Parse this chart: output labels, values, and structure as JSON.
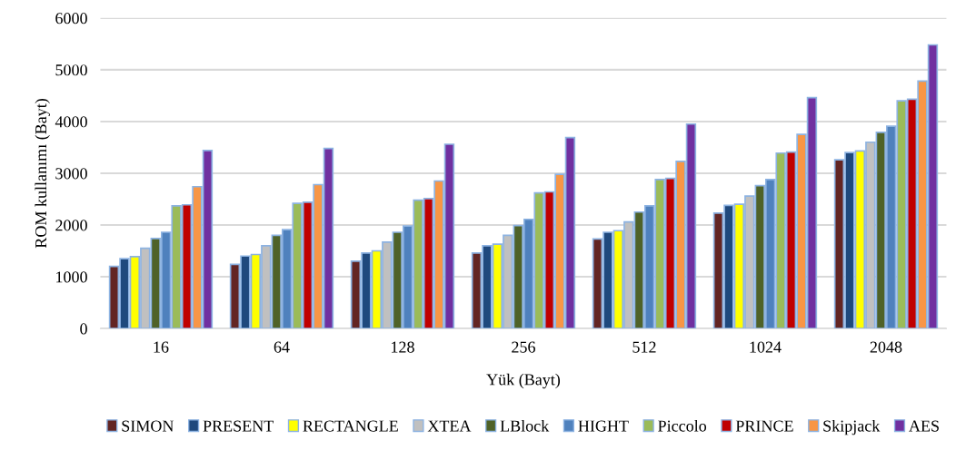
{
  "chart_data": {
    "type": "bar",
    "xlabel": "Yük (Bayt)",
    "ylabel": "ROM kullanımı (Bayt)",
    "categories": [
      "16",
      "64",
      "128",
      "256",
      "512",
      "1024",
      "2048"
    ],
    "ylim": [
      0,
      6000
    ],
    "yticks": [
      0,
      1000,
      2000,
      3000,
      4000,
      5000,
      6000
    ],
    "grid": "y",
    "legend": "bottom",
    "series": [
      {
        "name": "SIMON",
        "color": "#632523",
        "values": [
          1200,
          1240,
          1300,
          1460,
          1730,
          2230,
          3260
        ]
      },
      {
        "name": "PRESENT",
        "color": "#1f497d",
        "values": [
          1350,
          1400,
          1460,
          1600,
          1860,
          2380,
          3400
        ]
      },
      {
        "name": "RECTANGLE",
        "color": "#ffff00",
        "values": [
          1390,
          1430,
          1500,
          1630,
          1890,
          2400,
          3430
        ]
      },
      {
        "name": "XTEA",
        "color": "#c0c0c0",
        "values": [
          1550,
          1600,
          1670,
          1800,
          2060,
          2560,
          3600
        ]
      },
      {
        "name": "LBlock",
        "color": "#4f6228",
        "values": [
          1740,
          1800,
          1860,
          1990,
          2250,
          2760,
          3790
        ]
      },
      {
        "name": "HIGHT",
        "color": "#4f81bd",
        "values": [
          1860,
          1910,
          1980,
          2110,
          2370,
          2880,
          3910
        ]
      },
      {
        "name": "Piccolo",
        "color": "#9bbb59",
        "values": [
          2370,
          2420,
          2480,
          2620,
          2880,
          3390,
          4400
        ]
      },
      {
        "name": "PRINCE",
        "color": "#c00000",
        "values": [
          2390,
          2440,
          2510,
          2640,
          2900,
          3410,
          4430
        ]
      },
      {
        "name": "Skipjack",
        "color": "#f79646",
        "values": [
          2740,
          2780,
          2850,
          2980,
          3230,
          3750,
          4780
        ]
      },
      {
        "name": "AES",
        "color": "#7030a0",
        "values": [
          3440,
          3480,
          3560,
          3690,
          3950,
          4460,
          5480
        ]
      }
    ]
  }
}
